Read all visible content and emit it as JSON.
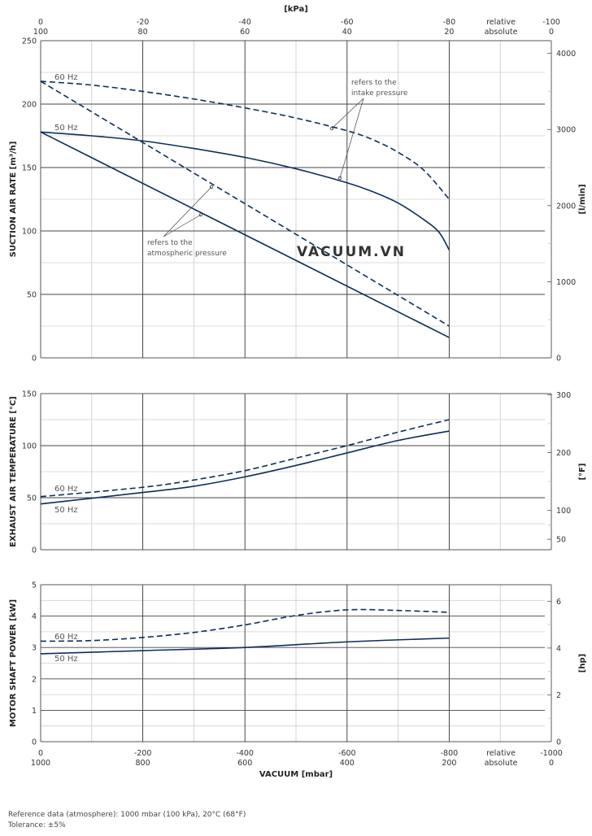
{
  "watermark": "VACUUM.VN",
  "footer": {
    "reference": "Reference data (atmosphere): 1000 mbar (100 kPa), 20°C (68°F)",
    "tolerance": "Tolerance: ±5%"
  },
  "top_axis": {
    "unit": "[kPa]",
    "relative_label": "relative",
    "absolute_label": "absolute",
    "relative_ticks": [
      "0",
      "-20",
      "-40",
      "-60",
      "-80",
      "-100"
    ],
    "absolute_ticks": [
      "100",
      "80",
      "60",
      "40",
      "20",
      "0"
    ]
  },
  "bottom_axis": {
    "title": "VACUUM  [mbar]",
    "relative_label": "relative",
    "absolute_label": "absolute",
    "relative_ticks": [
      "0",
      "-200",
      "-400",
      "-600",
      "-800",
      "-1000"
    ],
    "absolute_ticks": [
      "1000",
      "800",
      "600",
      "400",
      "200",
      "0"
    ]
  },
  "chart_data": [
    {
      "type": "line",
      "title": "Suction air rate",
      "xlabel": "VACUUM [mbar]",
      "ylabel": "SUCTION AIR RATE  [m³/h]",
      "y2label": "[l/min]",
      "xlim": [
        0,
        -1000
      ],
      "ylim": [
        0,
        250
      ],
      "yticks": [
        0,
        50,
        100,
        150,
        200,
        250
      ],
      "y2ticks": [
        0,
        1000,
        2000,
        3000,
        4000
      ],
      "y2lim": [
        0,
        4167
      ],
      "x": [
        0,
        -100,
        -200,
        -300,
        -400,
        -500,
        -600,
        -700,
        -750,
        -790,
        -800
      ],
      "series": [
        {
          "name": "60 Hz (intake pressure)",
          "style": "dashed",
          "x": [
            0,
            -100,
            -200,
            -300,
            -400,
            -500,
            -600,
            -650,
            -700,
            -750,
            -800
          ],
          "values": [
            218,
            215,
            210,
            204,
            197,
            189,
            179,
            172,
            162,
            148,
            125
          ]
        },
        {
          "name": "50 Hz (intake pressure)",
          "style": "solid",
          "x": [
            0,
            -100,
            -200,
            -300,
            -400,
            -500,
            -600,
            -650,
            -700,
            -750,
            -780,
            -800
          ],
          "values": [
            178,
            175,
            171,
            165,
            158,
            149,
            138,
            131,
            122,
            109,
            99,
            85
          ]
        },
        {
          "name": "60 Hz (atmospheric pressure)",
          "style": "dashed",
          "x": [
            0,
            -800
          ],
          "values": [
            218,
            25
          ]
        },
        {
          "name": "50 Hz (atmospheric pressure)",
          "style": "solid",
          "x": [
            0,
            -800
          ],
          "values": [
            178,
            16
          ]
        }
      ],
      "labels": {
        "hz60": "60 Hz",
        "hz50": "50 Hz"
      },
      "annotations": [
        {
          "text_line1": "refers to the",
          "text_line2": "intake pressure"
        },
        {
          "text_line1": "refers to the",
          "text_line2": "atmospheric pressure"
        }
      ],
      "grid": true
    },
    {
      "type": "line",
      "title": "Exhaust air temperature",
      "xlabel": "VACUUM [mbar]",
      "ylabel": "EXHAUST AIR TEMPERATURE  [°C]",
      "y2label": "[°F]",
      "xlim": [
        0,
        -1000
      ],
      "ylim": [
        0,
        150
      ],
      "yticks": [
        0,
        50,
        100,
        150
      ],
      "y2ticks": [
        50,
        100,
        200,
        300
      ],
      "series": [
        {
          "name": "60 Hz",
          "style": "dashed",
          "x": [
            0,
            -200,
            -300,
            -400,
            -500,
            -600,
            -700,
            -800
          ],
          "values": [
            51,
            60,
            67,
            76,
            88,
            100,
            113,
            125
          ]
        },
        {
          "name": "50 Hz",
          "style": "solid",
          "x": [
            0,
            -200,
            -300,
            -400,
            -500,
            -600,
            -700,
            -800
          ],
          "values": [
            44,
            55,
            61,
            70,
            81,
            93,
            105,
            114
          ]
        }
      ],
      "labels": {
        "hz60": "60 Hz",
        "hz50": "50 Hz"
      },
      "grid": true
    },
    {
      "type": "line",
      "title": "Motor shaft power",
      "xlabel": "VACUUM [mbar]",
      "ylabel": "MOTOR SHAFT POWER  [kW]",
      "y2label": "[hp]",
      "xlim": [
        0,
        -1000
      ],
      "ylim": [
        0,
        5
      ],
      "yticks": [
        0,
        1,
        2,
        3,
        4,
        5
      ],
      "y2ticks": [
        0,
        2,
        4,
        6
      ],
      "series": [
        {
          "name": "60 Hz",
          "style": "dashed",
          "x": [
            0,
            -100,
            -200,
            -300,
            -400,
            -500,
            -600,
            -700,
            -800
          ],
          "values": [
            3.2,
            3.22,
            3.32,
            3.48,
            3.72,
            4.02,
            4.2,
            4.18,
            4.12
          ]
        },
        {
          "name": "50 Hz",
          "style": "solid",
          "x": [
            0,
            -200,
            -400,
            -600,
            -800
          ],
          "values": [
            2.8,
            2.9,
            3.0,
            3.18,
            3.3
          ]
        }
      ],
      "labels": {
        "hz60": "60 Hz",
        "hz50": "50 Hz"
      },
      "grid": true
    }
  ]
}
